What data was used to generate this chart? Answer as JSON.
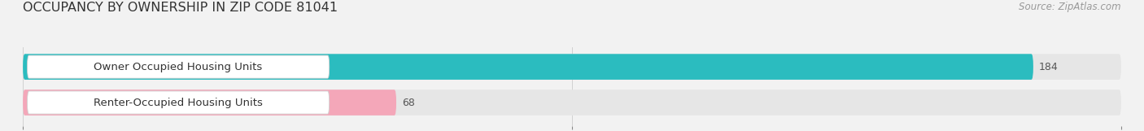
{
  "title": "OCCUPANCY BY OWNERSHIP IN ZIP CODE 81041",
  "source": "Source: ZipAtlas.com",
  "categories": [
    "Owner Occupied Housing Units",
    "Renter-Occupied Housing Units"
  ],
  "values": [
    184,
    68
  ],
  "bar_colors": [
    "#2bbcbf",
    "#f4a7b9"
  ],
  "xlim": [
    0,
    200
  ],
  "xticks": [
    0,
    100,
    200
  ],
  "background_color": "#f2f2f2",
  "bar_bg_color": "#e6e6e6",
  "label_box_color": "#ffffff",
  "label_border_color": "#d0d0d0",
  "value_color": "#555555",
  "tick_color": "#888888",
  "title_color": "#333333",
  "source_color": "#999999",
  "title_fontsize": 11.5,
  "source_fontsize": 8.5,
  "label_fontsize": 9.5,
  "value_fontsize": 9
}
